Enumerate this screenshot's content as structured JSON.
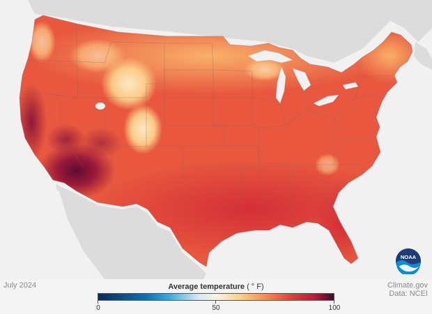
{
  "map": {
    "period": "July 2024",
    "variable": "Average temperature",
    "units": "( ° F)",
    "legend": {
      "min": "0",
      "mid": "50",
      "max": "100",
      "stops": [
        {
          "t": 0,
          "color": "#0b2a5b"
        },
        {
          "t": 0.2,
          "color": "#0b6fb4"
        },
        {
          "t": 0.3,
          "color": "#37a8dd"
        },
        {
          "t": 0.42,
          "color": "#cfe7f2"
        },
        {
          "t": 0.5,
          "color": "#f8f4e8"
        },
        {
          "t": 0.6,
          "color": "#fcd189"
        },
        {
          "t": 0.7,
          "color": "#f79452"
        },
        {
          "t": 0.82,
          "color": "#e0403b"
        },
        {
          "t": 0.92,
          "color": "#b31f3b"
        },
        {
          "t": 1,
          "color": "#3d0b2a"
        }
      ]
    }
  },
  "credits": {
    "source": "Climate.gov",
    "data": "Data: NCEI"
  },
  "logo": {
    "text": "NOAA",
    "icon": "noaa-logo-icon"
  },
  "colors": {
    "land_cool": "#f8b46a",
    "land_warm": "#f0714a",
    "land_hot": "#d83838",
    "land_hottest": "#6d0e33",
    "mountain_cool": "#fbe3b8",
    "water": "#f1f1f1",
    "neighbor_land": "#dcdcdc"
  }
}
